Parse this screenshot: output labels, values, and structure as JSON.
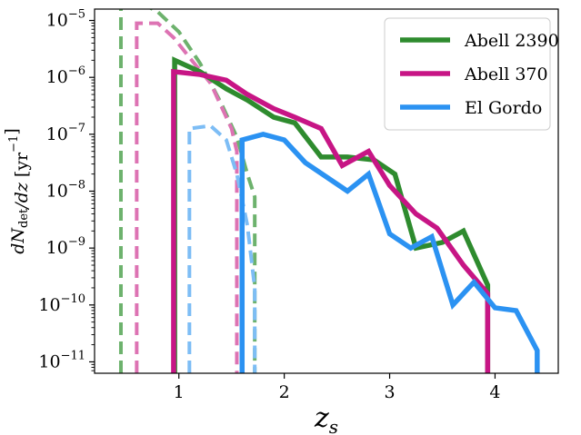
{
  "chart_data": {
    "type": "line",
    "title": "",
    "xlabel": "z_s",
    "ylabel": "dN_det/dz [yr^-1]",
    "xlim": [
      0.2,
      4.6
    ],
    "ylim_exp": [
      -11.2,
      -4.8
    ],
    "y_scale": "log",
    "grid": false,
    "legend_position": "top-right",
    "x_ticks": [
      1,
      2,
      3,
      4
    ],
    "y_tick_exponents": [
      -11,
      -10,
      -9,
      -8,
      -7,
      -6,
      -5
    ],
    "series": [
      {
        "name": "Abell 2390",
        "color": "#2e8b2e",
        "style": "solid",
        "x": [
          0.96,
          0.96,
          1.2,
          1.45,
          1.65,
          1.9,
          2.1,
          2.35,
          2.6,
          2.85,
          3.05,
          3.25,
          3.5,
          3.7,
          3.93,
          3.93
        ],
        "y_exp": [
          -11.2,
          -5.7,
          -5.9,
          -6.2,
          -6.4,
          -6.7,
          -6.8,
          -7.4,
          -7.4,
          -7.45,
          -7.7,
          -9.0,
          -8.9,
          -8.7,
          -9.65,
          -11.2
        ]
      },
      {
        "name": "Abell 370",
        "color": "#c71585",
        "style": "solid",
        "x": [
          0.95,
          0.95,
          1.2,
          1.45,
          1.65,
          1.9,
          2.1,
          2.35,
          2.55,
          2.8,
          3.0,
          3.25,
          3.45,
          3.7,
          3.93,
          3.93
        ],
        "y_exp": [
          -11.2,
          -5.9,
          -5.95,
          -6.05,
          -6.3,
          -6.55,
          -6.7,
          -6.9,
          -7.55,
          -7.3,
          -7.9,
          -8.4,
          -8.65,
          -9.3,
          -9.8,
          -11.2
        ]
      },
      {
        "name": "El Gordo",
        "color": "#2b92f2",
        "style": "solid",
        "x": [
          1.6,
          1.6,
          1.8,
          2.0,
          2.2,
          2.4,
          2.6,
          2.8,
          3.0,
          3.2,
          3.4,
          3.6,
          3.8,
          4.0,
          4.2,
          4.4,
          4.4
        ],
        "y_exp": [
          -11.2,
          -7.1,
          -7.0,
          -7.1,
          -7.5,
          -7.75,
          -8.0,
          -7.7,
          -8.75,
          -9.0,
          -8.8,
          -10.0,
          -9.6,
          -10.05,
          -10.1,
          -10.8,
          -11.2
        ]
      },
      {
        "name": "",
        "color": "#6db26d",
        "style": "dashed",
        "x": [
          0.45,
          0.45,
          0.6,
          0.8,
          1.0,
          1.2,
          1.4,
          1.55,
          1.65,
          1.72,
          1.72
        ],
        "y_exp": [
          -11.2,
          -4.55,
          -4.65,
          -4.85,
          -5.2,
          -5.75,
          -6.45,
          -7.05,
          -7.7,
          -8.1,
          -11.2
        ]
      },
      {
        "name": "",
        "color": "#dd73b3",
        "style": "dashed",
        "x": [
          0.6,
          0.6,
          0.8,
          0.95,
          1.1,
          1.3,
          1.5,
          1.55,
          1.55
        ],
        "y_exp": [
          -11.2,
          -5.05,
          -5.05,
          -5.3,
          -5.65,
          -6.1,
          -6.9,
          -7.3,
          -11.2
        ]
      },
      {
        "name": "",
        "color": "#7dbdf5",
        "style": "dashed",
        "x": [
          1.1,
          1.1,
          1.3,
          1.45,
          1.55,
          1.65,
          1.72,
          1.72
        ],
        "y_exp": [
          -11.2,
          -6.9,
          -6.85,
          -7.1,
          -7.7,
          -8.6,
          -9.7,
          -11.2
        ]
      }
    ]
  }
}
